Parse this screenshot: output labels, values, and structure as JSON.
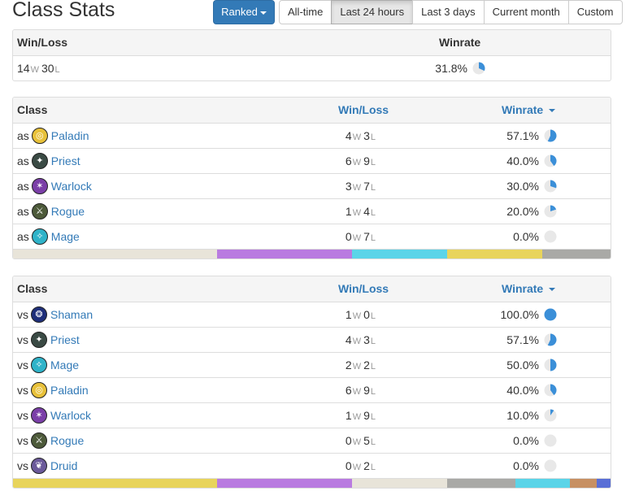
{
  "page_title": "Class Stats",
  "ranked_button": "Ranked",
  "time_filters": [
    "All-time",
    "Last 24 hours",
    "Last 3 days",
    "Current month",
    "Custom"
  ],
  "active_filter": "Last 24 hours",
  "summary": {
    "headers": {
      "wl": "Win/Loss",
      "winrate": "Winrate"
    },
    "wins": "14",
    "losses": "30",
    "w_unit": "W",
    "l_unit": "L",
    "winrate": "31.8%",
    "winrate_fraction": 0.318
  },
  "as_table": {
    "headers": {
      "class": "Class",
      "wl": "Win/Loss",
      "winrate": "Winrate"
    },
    "prefix": "as",
    "rows": [
      {
        "class": "Paladin",
        "icon": "paladin-icon",
        "wins": "4",
        "losses": "3",
        "winrate": "57.1%",
        "fraction": 0.571
      },
      {
        "class": "Priest",
        "icon": "priest-icon",
        "wins": "6",
        "losses": "9",
        "winrate": "40.0%",
        "fraction": 0.4
      },
      {
        "class": "Warlock",
        "icon": "warlock-icon",
        "wins": "3",
        "losses": "7",
        "winrate": "30.0%",
        "fraction": 0.3
      },
      {
        "class": "Rogue",
        "icon": "rogue-icon",
        "wins": "1",
        "losses": "4",
        "winrate": "20.0%",
        "fraction": 0.2
      },
      {
        "class": "Mage",
        "icon": "mage-icon",
        "wins": "0",
        "losses": "7",
        "winrate": "0.0%",
        "fraction": 0.0
      }
    ],
    "distribution": [
      {
        "color": "#e8e4d9",
        "share": 0.341
      },
      {
        "color": "#b97be0",
        "share": 0.227
      },
      {
        "color": "#5bd4e8",
        "share": 0.159
      },
      {
        "color": "#e8d45c",
        "share": 0.159
      },
      {
        "color": "#a9a9a6",
        "share": 0.114
      }
    ]
  },
  "vs_table": {
    "headers": {
      "class": "Class",
      "wl": "Win/Loss",
      "winrate": "Winrate"
    },
    "prefix": "vs",
    "rows": [
      {
        "class": "Shaman",
        "icon": "shaman-icon",
        "wins": "1",
        "losses": "0",
        "winrate": "100.0%",
        "fraction": 1.0
      },
      {
        "class": "Priest",
        "icon": "priest-icon",
        "wins": "4",
        "losses": "3",
        "winrate": "57.1%",
        "fraction": 0.571
      },
      {
        "class": "Mage",
        "icon": "mage-icon",
        "wins": "2",
        "losses": "2",
        "winrate": "50.0%",
        "fraction": 0.5
      },
      {
        "class": "Paladin",
        "icon": "paladin-icon",
        "wins": "6",
        "losses": "9",
        "winrate": "40.0%",
        "fraction": 0.4
      },
      {
        "class": "Warlock",
        "icon": "warlock-icon",
        "wins": "1",
        "losses": "9",
        "winrate": "10.0%",
        "fraction": 0.1
      },
      {
        "class": "Rogue",
        "icon": "rogue-icon",
        "wins": "0",
        "losses": "5",
        "winrate": "0.0%",
        "fraction": 0.0
      },
      {
        "class": "Druid",
        "icon": "druid-icon",
        "wins": "0",
        "losses": "2",
        "winrate": "0.0%",
        "fraction": 0.0
      }
    ],
    "distribution": [
      {
        "color": "#e8d45c",
        "share": 0.341
      },
      {
        "color": "#b97be0",
        "share": 0.227
      },
      {
        "color": "#e8e4d9",
        "share": 0.159
      },
      {
        "color": "#a9a9a6",
        "share": 0.114
      },
      {
        "color": "#5bd4e8",
        "share": 0.091
      },
      {
        "color": "#c79063",
        "share": 0.045
      },
      {
        "color": "#5a6fd6",
        "share": 0.023
      }
    ]
  },
  "colors": {
    "accent": "#337ab7",
    "pie_fill": "#3b8fd8",
    "pie_bg": "#e8e8e8",
    "paladin": "#e8c13a",
    "priest": "#3a4a44",
    "warlock": "#7b3fa8",
    "rogue": "#4d5a3a",
    "mage": "#2fb3c9",
    "shaman": "#1f2f7a",
    "druid": "#6b5a9a"
  }
}
